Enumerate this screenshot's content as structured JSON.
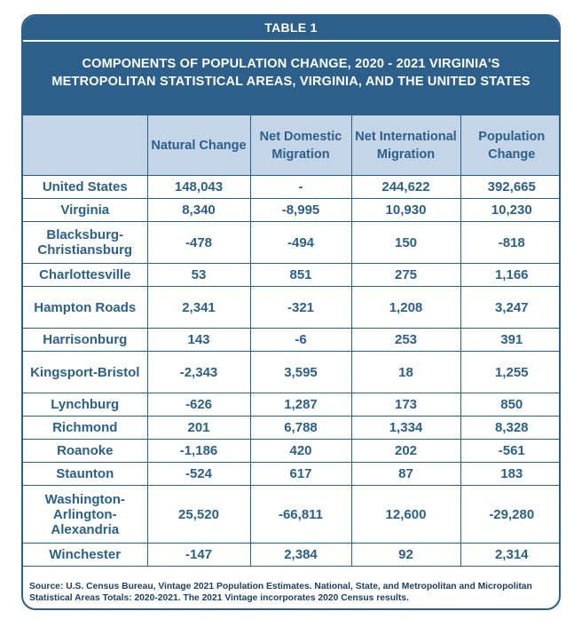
{
  "header": {
    "table_label": "TABLE 1",
    "title": "COMPONENTS OF POPULATION CHANGE, 2020 - 2021 VIRGINIA'S METROPOLITAN STATISTICAL AREAS, VIRGINIA, AND THE UNITED STATES"
  },
  "columns": [
    "",
    "Natural Change",
    "Net Domestic Migration",
    "Net International Migration",
    "Population Change"
  ],
  "rows": [
    {
      "area": "United States",
      "natural": "148,043",
      "domestic": "-",
      "international": "244,622",
      "change": "392,665"
    },
    {
      "area": "Virginia",
      "natural": "8,340",
      "domestic": "-8,995",
      "international": "10,930",
      "change": "10,230"
    },
    {
      "area": "Blacksburg-Christiansburg",
      "natural": "-478",
      "domestic": "-494",
      "international": "150",
      "change": "-818"
    },
    {
      "area": "Charlottesville",
      "natural": "53",
      "domestic": "851",
      "international": "275",
      "change": "1,166"
    },
    {
      "area": "Hampton Roads",
      "natural": "2,341",
      "domestic": "-321",
      "international": "1,208",
      "change": "3,247"
    },
    {
      "area": "Harrisonburg",
      "natural": "143",
      "domestic": "-6",
      "international": "253",
      "change": "391"
    },
    {
      "area": "Kingsport-Bristol",
      "natural": "-2,343",
      "domestic": "3,595",
      "international": "18",
      "change": "1,255"
    },
    {
      "area": "Lynchburg",
      "natural": "-626",
      "domestic": "1,287",
      "international": "173",
      "change": "850"
    },
    {
      "area": "Richmond",
      "natural": "201",
      "domestic": "6,788",
      "international": "1,334",
      "change": "8,328"
    },
    {
      "area": "Roanoke",
      "natural": "-1,186",
      "domestic": "420",
      "international": "202",
      "change": "-561"
    },
    {
      "area": "Staunton",
      "natural": "-524",
      "domestic": "617",
      "international": "87",
      "change": "183"
    },
    {
      "area": "Washington-Arlington-Alexandria",
      "natural": "25,520",
      "domestic": "-66,811",
      "international": "12,600",
      "change": "-29,280"
    },
    {
      "area": "Winchester",
      "natural": "-147",
      "domestic": "2,384",
      "international": "92",
      "change": "2,314"
    }
  ],
  "source": "Source: U.S. Census Bureau, Vintage 2021 Population Estimates. National, State, and Metropolitan and Micropolitan Statistical Areas Totals: 2020-2021. The 2021 Vintage incorporates 2020 Census results.",
  "colors": {
    "header_bg": "#2c5f8a",
    "column_header_bg": "#c5d5e8",
    "text": "#2c5f8a",
    "source_text": "#1f3f63"
  }
}
